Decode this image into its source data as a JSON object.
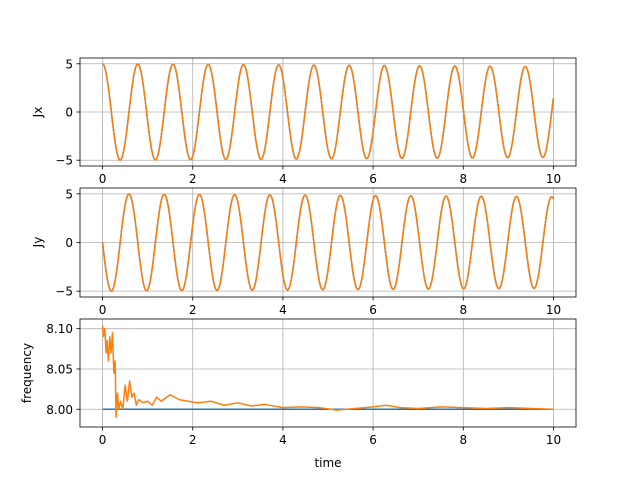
{
  "figure": {
    "xlabel": "time"
  },
  "colors": {
    "series_a": "#1f77b4",
    "series_b": "#ff7f0e",
    "grid": "#b0b0b0",
    "frame": "#000000"
  },
  "chart_data": [
    {
      "type": "line",
      "title": "",
      "xlabel": "",
      "ylabel": "Jx",
      "xlim": [
        -0.5,
        10.5
      ],
      "ylim": [
        -5.6,
        5.6
      ],
      "xticks": [
        0,
        2,
        4,
        6,
        8,
        10
      ],
      "xtick_labels": [
        "0",
        "2",
        "4",
        "6",
        "8",
        "10"
      ],
      "yticks": [
        -5,
        0,
        5
      ],
      "ytick_labels": [
        "−5",
        "0",
        "5"
      ],
      "grid": true,
      "legend": "none",
      "series": [
        {
          "color": "#1f77b4",
          "model": "5*cos(2*pi*f*t)",
          "amplitude": [
            5.0,
            4.7
          ],
          "frequency": 1.28
        },
        {
          "color": "#ff7f0e",
          "model": "5*cos(2*pi*f*t)",
          "amplitude": [
            5.0,
            4.7
          ],
          "frequency": 1.28
        }
      ]
    },
    {
      "type": "line",
      "title": "",
      "xlabel": "",
      "ylabel": "Jy",
      "xlim": [
        -0.5,
        10.5
      ],
      "ylim": [
        -5.6,
        5.6
      ],
      "xticks": [
        0,
        2,
        4,
        6,
        8,
        10
      ],
      "xtick_labels": [
        "0",
        "2",
        "4",
        "6",
        "8",
        "10"
      ],
      "yticks": [
        -5,
        0,
        5
      ],
      "ytick_labels": [
        "−5",
        "0",
        "5"
      ],
      "grid": true,
      "legend": "none",
      "series": [
        {
          "color": "#1f77b4",
          "model": "-5*sin(2*pi*f*t)",
          "amplitude": [
            5.0,
            4.7
          ],
          "frequency": 1.28
        },
        {
          "color": "#ff7f0e",
          "model": "-5*sin(2*pi*f*t)",
          "amplitude": [
            5.0,
            4.7
          ],
          "frequency": 1.28
        }
      ]
    },
    {
      "type": "line",
      "title": "",
      "xlabel": "time",
      "ylabel": "frequency",
      "xlim": [
        -0.5,
        10.5
      ],
      "ylim": [
        7.978,
        8.112
      ],
      "xticks": [
        0,
        2,
        4,
        6,
        8,
        10
      ],
      "xtick_labels": [
        "0",
        "2",
        "4",
        "6",
        "8",
        "10"
      ],
      "yticks": [
        8.0,
        8.05,
        8.1
      ],
      "ytick_labels": [
        "8.00",
        "8.05",
        "8.10"
      ],
      "grid": true,
      "legend": "none",
      "series": [
        {
          "color": "#1f77b4",
          "x": [
            0,
            10
          ],
          "y": [
            8.0,
            8.0
          ]
        },
        {
          "color": "#ff7f0e",
          "x": [
            0,
            0.02,
            0.05,
            0.08,
            0.1,
            0.13,
            0.16,
            0.19,
            0.22,
            0.25,
            0.28,
            0.3,
            0.33,
            0.36,
            0.4,
            0.45,
            0.5,
            0.55,
            0.6,
            0.65,
            0.7,
            0.75,
            0.8,
            0.9,
            1.0,
            1.1,
            1.2,
            1.3,
            1.5,
            1.7,
            1.9,
            2.1,
            2.4,
            2.7,
            3.0,
            3.3,
            3.6,
            4.0,
            4.4,
            4.8,
            5.2,
            5.6,
            6.0,
            6.3,
            6.6,
            7.0,
            7.5,
            8.0,
            8.5,
            9.0,
            9.5,
            10.0
          ],
          "y": [
            8.104,
            8.09,
            8.1,
            8.07,
            8.085,
            8.06,
            8.09,
            8.07,
            8.095,
            8.045,
            8.06,
            7.99,
            8.02,
            8.0,
            8.01,
            8.0,
            8.03,
            8.01,
            8.035,
            8.015,
            8.02,
            8.005,
            8.012,
            8.008,
            8.01,
            8.005,
            8.015,
            8.01,
            8.018,
            8.012,
            8.01,
            8.008,
            8.01,
            8.005,
            8.008,
            8.004,
            8.006,
            8.002,
            8.003,
            8.002,
            7.999,
            8.001,
            8.003,
            8.005,
            8.002,
            8.001,
            8.003,
            8.002,
            8.001,
            8.002,
            8.001,
            8.0
          ]
        }
      ]
    }
  ]
}
